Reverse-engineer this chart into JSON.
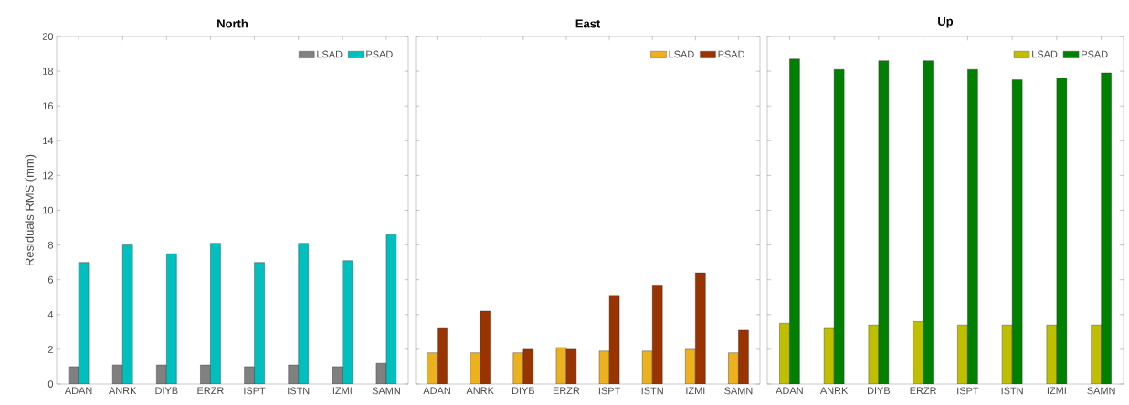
{
  "chart_data": [
    {
      "type": "bar",
      "title": "North",
      "ylabel": "Residuals RMS (mm)",
      "categories": [
        "ADAN",
        "ANRK",
        "DIYB",
        "ERZR",
        "ISPT",
        "ISTN",
        "IZMI",
        "SAMN"
      ],
      "ylim": [
        0,
        20
      ],
      "yticks": [
        0,
        2,
        4,
        6,
        8,
        10,
        12,
        14,
        16,
        18,
        20
      ],
      "legend": "top right",
      "series": [
        {
          "name": "LSAD",
          "color": "#808080",
          "values": [
            1.0,
            1.1,
            1.1,
            1.1,
            1.0,
            1.1,
            1.0,
            1.2
          ]
        },
        {
          "name": "PSAD",
          "color": "#00bfbf",
          "values": [
            7.0,
            8.0,
            7.5,
            8.1,
            7.0,
            8.1,
            7.1,
            8.6
          ]
        }
      ]
    },
    {
      "type": "bar",
      "title": "East",
      "categories": [
        "ADAN",
        "ANRK",
        "DIYB",
        "ERZR",
        "ISPT",
        "ISTN",
        "IZMI",
        "SAMN"
      ],
      "ylim": [
        0,
        20
      ],
      "yticks": [
        0,
        2,
        4,
        6,
        8,
        10,
        12,
        14,
        16,
        18,
        20
      ],
      "legend": "top right",
      "tick_labels": "x",
      "series": [
        {
          "name": "LSAD",
          "color": "#edb120",
          "values": [
            1.8,
            1.8,
            1.8,
            2.1,
            1.9,
            1.9,
            2.0,
            1.8
          ]
        },
        {
          "name": "PSAD",
          "color": "#993300",
          "values": [
            3.2,
            4.2,
            2.0,
            2.0,
            5.1,
            5.7,
            6.4,
            3.1
          ]
        }
      ]
    },
    {
      "type": "bar",
      "title": "Up",
      "categories": [
        "ADAN",
        "ANRK",
        "DIYB",
        "ERZR",
        "ISPT",
        "ISTN",
        "IZMI",
        "SAMN"
      ],
      "ylim": [
        0,
        20
      ],
      "yticks": [
        0,
        2,
        4,
        6,
        8,
        10,
        12,
        14,
        16,
        18,
        20
      ],
      "legend": "top right",
      "tick_labels": "x",
      "series": [
        {
          "name": "LSAD",
          "color": "#bfbf00",
          "values": [
            3.5,
            3.2,
            3.4,
            3.6,
            3.4,
            3.4,
            3.4,
            3.4
          ]
        },
        {
          "name": "PSAD",
          "color": "#008000",
          "values": [
            18.7,
            18.1,
            18.6,
            18.6,
            18.1,
            17.5,
            17.6,
            17.9
          ]
        }
      ]
    }
  ]
}
